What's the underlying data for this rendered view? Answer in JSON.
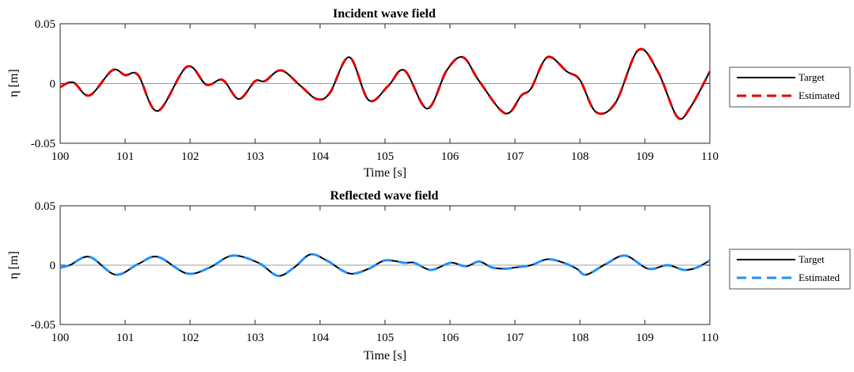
{
  "chart_data": [
    {
      "type": "line",
      "title": "Incident wave field",
      "xlabel": "Time [s]",
      "ylabel": "η [m]",
      "xlim": [
        100,
        110
      ],
      "ylim": [
        -0.05,
        0.05
      ],
      "xticks": [
        "100",
        "101",
        "102",
        "103",
        "104",
        "105",
        "106",
        "107",
        "108",
        "109",
        "110"
      ],
      "yticks": [
        "0.05",
        "0",
        "-0.05"
      ],
      "legend_position": "outside-right",
      "grid": false,
      "x": [
        100.0,
        100.2,
        100.45,
        100.8,
        101.0,
        101.2,
        101.5,
        101.95,
        102.25,
        102.5,
        102.75,
        103.0,
        103.15,
        103.4,
        103.7,
        103.95,
        104.15,
        104.45,
        104.75,
        105.05,
        105.3,
        105.65,
        105.95,
        106.2,
        106.45,
        106.85,
        107.1,
        107.25,
        107.5,
        107.8,
        108.0,
        108.25,
        108.55,
        108.9,
        109.2,
        109.5,
        109.7,
        110.0
      ],
      "series": [
        {
          "name": "Target",
          "color": "#000000",
          "style": "solid",
          "values": [
            -0.003,
            0.001,
            -0.01,
            0.011,
            0.007,
            0.007,
            -0.023,
            0.014,
            -0.001,
            0.003,
            -0.013,
            0.002,
            0.002,
            0.011,
            -0.002,
            -0.013,
            -0.008,
            0.022,
            -0.014,
            -0.002,
            0.011,
            -0.021,
            0.011,
            0.022,
            0.002,
            -0.025,
            -0.01,
            -0.004,
            0.022,
            0.01,
            0.003,
            -0.024,
            -0.016,
            0.028,
            0.01,
            -0.028,
            -0.02,
            0.01
          ]
        },
        {
          "name": "Estimated",
          "color": "#e00000",
          "style": "dashed",
          "values": [
            -0.003,
            0.001,
            -0.01,
            0.011,
            0.007,
            0.007,
            -0.023,
            0.014,
            -0.001,
            0.003,
            -0.013,
            0.002,
            0.002,
            0.011,
            -0.002,
            -0.013,
            -0.008,
            0.022,
            -0.014,
            -0.002,
            0.011,
            -0.021,
            0.011,
            0.022,
            0.002,
            -0.025,
            -0.01,
            -0.004,
            0.022,
            0.01,
            0.003,
            -0.024,
            -0.016,
            0.028,
            0.01,
            -0.028,
            -0.02,
            0.01
          ]
        }
      ]
    },
    {
      "type": "line",
      "title": "Reflected wave field",
      "xlabel": "Time [s]",
      "ylabel": "η [m]",
      "xlim": [
        100,
        110
      ],
      "ylim": [
        -0.05,
        0.05
      ],
      "xticks": [
        "100",
        "101",
        "102",
        "103",
        "104",
        "105",
        "106",
        "107",
        "108",
        "109",
        "110"
      ],
      "yticks": [
        "0.05",
        "0",
        "-0.05"
      ],
      "legend_position": "outside-right",
      "grid": false,
      "x": [
        100.0,
        100.15,
        100.45,
        100.85,
        101.2,
        101.5,
        101.95,
        102.3,
        102.65,
        103.05,
        103.35,
        103.6,
        103.85,
        104.1,
        104.45,
        104.75,
        105.0,
        105.3,
        105.45,
        105.7,
        105.95,
        106.05,
        106.25,
        106.45,
        106.65,
        106.85,
        107.0,
        107.25,
        107.5,
        107.75,
        107.95,
        108.1,
        108.4,
        108.7,
        109.05,
        109.35,
        109.6,
        109.8,
        110.0
      ],
      "series": [
        {
          "name": "Target",
          "color": "#000000",
          "style": "solid",
          "values": [
            -0.002,
            0.0,
            0.007,
            -0.008,
            0.001,
            0.007,
            -0.007,
            -0.002,
            0.008,
            0.002,
            -0.009,
            -0.002,
            0.009,
            0.004,
            -0.007,
            -0.003,
            0.004,
            0.002,
            0.002,
            -0.004,
            0.001,
            0.002,
            -0.001,
            0.003,
            -0.002,
            -0.003,
            -0.002,
            0.0,
            0.005,
            0.002,
            -0.003,
            -0.008,
            0.001,
            0.008,
            -0.003,
            0.0,
            -0.004,
            -0.002,
            0.004
          ]
        },
        {
          "name": "Estimated",
          "color": "#1e90ff",
          "style": "dashed",
          "values": [
            -0.002,
            0.0,
            0.007,
            -0.008,
            0.001,
            0.007,
            -0.007,
            -0.002,
            0.008,
            0.002,
            -0.009,
            -0.002,
            0.009,
            0.004,
            -0.007,
            -0.003,
            0.004,
            0.002,
            0.002,
            -0.004,
            0.001,
            0.002,
            -0.001,
            0.003,
            -0.002,
            -0.003,
            -0.002,
            0.0,
            0.005,
            0.002,
            -0.003,
            -0.008,
            0.001,
            0.008,
            -0.003,
            0.0,
            -0.004,
            -0.002,
            0.004
          ]
        }
      ]
    }
  ]
}
